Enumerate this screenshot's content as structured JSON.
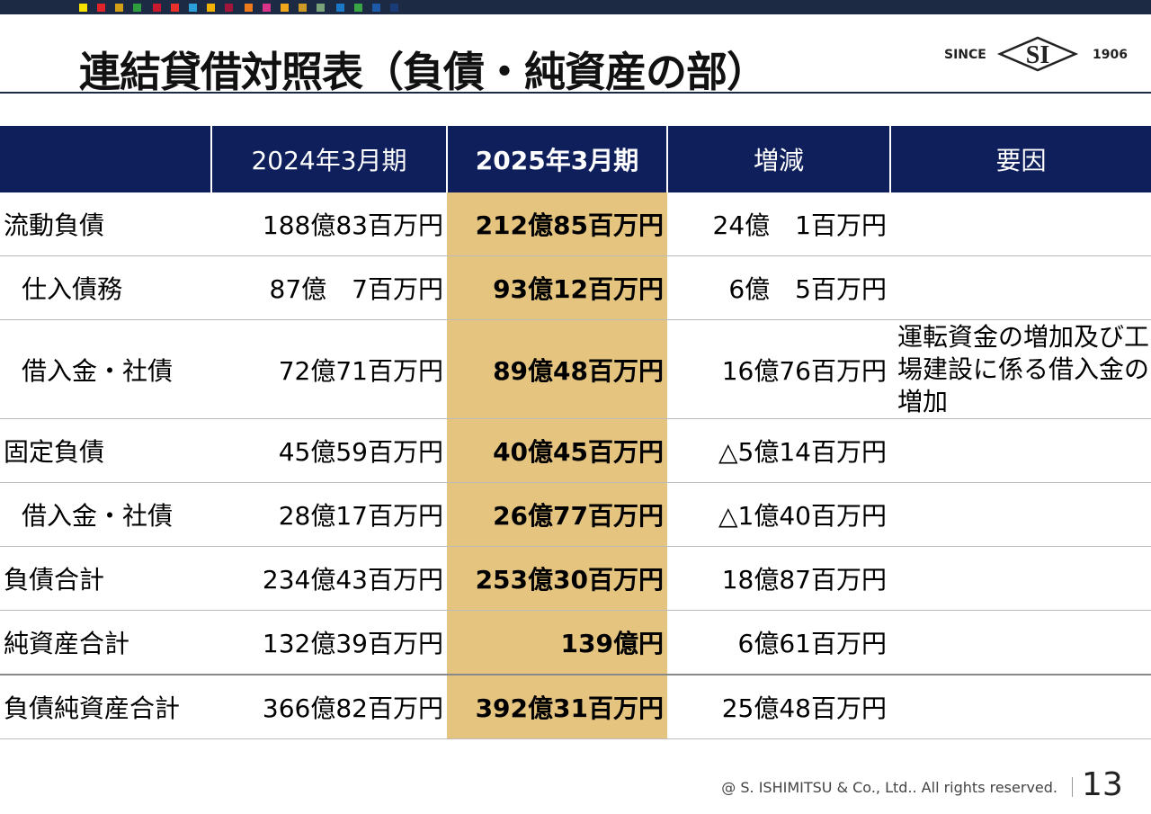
{
  "header": {
    "title": "連結貸借対照表（負債・純資産の部）",
    "logo": {
      "since": "SINCE",
      "mark": "SI",
      "year": "1906"
    }
  },
  "table": {
    "columns": [
      "2024年3月期",
      "2025年3月期",
      "増減",
      "要因"
    ],
    "rows": [
      {
        "label": "流動負債",
        "values": [
          "188億83百万円",
          "212億85百万円",
          "24億　1百万円"
        ]
      },
      {
        "label": "仕入債務",
        "values": [
          "87億　7百万円",
          "93億12百万円",
          "6億　5百万円"
        ],
        "indent": true
      },
      {
        "label": "借入金・社債",
        "values": [
          "72億71百万円",
          "89億48百万円",
          "16億76百万円"
        ],
        "note": "運転資金の増加及び工場建設に係る借入金の増加",
        "indent": true
      },
      {
        "label": "固定負債",
        "values": [
          "45億59百万円",
          "40億45百万円",
          "△5億14百万円"
        ]
      },
      {
        "label": "借入金・社債",
        "values": [
          "28億17百万円",
          "26億77百万円",
          "△1億40百万円"
        ],
        "indent": true
      },
      {
        "label": "負債合計",
        "values": [
          "234億43百万円",
          "253億30百万円",
          "18億87百万円"
        ]
      },
      {
        "label": "純資産合計",
        "values": [
          "132億39百万円",
          "139億円",
          "6億61百万円"
        ]
      },
      {
        "label": "負債純資産合計",
        "values": [
          "366億82百万円",
          "392億31百万円",
          "25億48百万円"
        ]
      }
    ]
  },
  "footer": {
    "copyright": "@ S. ISHIMITSU & Co., Ltd.. All rights reserved.",
    "page": "13"
  }
}
